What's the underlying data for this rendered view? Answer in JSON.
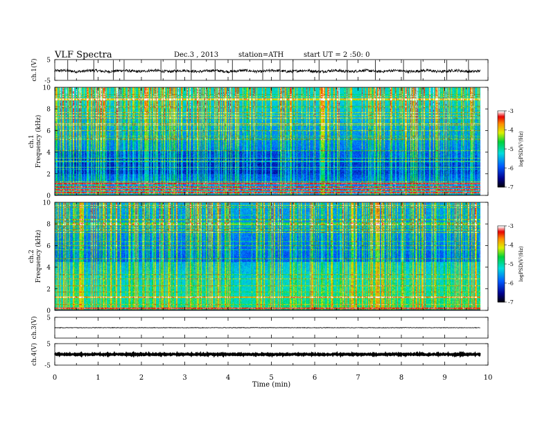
{
  "header": {
    "title": "VLF Spectra",
    "date": "Dec.3 , 2013",
    "station": "station=ATH",
    "start": "start UT = 2 :50: 0"
  },
  "chart_data": [
    {
      "type": "line",
      "name": "ch1-waveform",
      "ylabel": "ch.1(V)",
      "ylim": [
        -5,
        5
      ],
      "yticks": [
        "5",
        "-5"
      ],
      "mean_level": -0.5,
      "spike_times_min": [
        0.3,
        0.9,
        1.35,
        1.6,
        2.45,
        2.8,
        3.15,
        3.7,
        4.1,
        4.8,
        5.2,
        5.5,
        6.1,
        6.75,
        7.4,
        8.05,
        8.45,
        9.05,
        9.55
      ]
    },
    {
      "type": "heatmap",
      "name": "ch1-spectrogram",
      "ylabel": "ch.1 Frequency (kHz)",
      "ylim": [
        0,
        10
      ],
      "yticks": [
        "0",
        "2",
        "4",
        "6",
        "8",
        "10"
      ],
      "colorbar": {
        "label": "logPSD(V²/Hz)",
        "ticks": [
          "-3",
          "-4",
          "-5",
          "-6",
          "-7"
        ],
        "range": [
          -7,
          -3
        ]
      },
      "transition_time_min": 5.2,
      "strong_lines_khz": [
        0.3,
        0.55,
        0.8,
        1.1
      ]
    },
    {
      "type": "heatmap",
      "name": "ch2-spectrogram",
      "ylabel": "ch.2 Frequency (kHz)",
      "ylim": [
        0,
        10
      ],
      "yticks": [
        "0",
        "2",
        "4",
        "6",
        "8",
        "10"
      ],
      "colorbar": {
        "label": "logPSD(V²/Hz)",
        "ticks": [
          "-3",
          "-4",
          "-5",
          "-6",
          "-7"
        ],
        "range": [
          -7,
          -3
        ]
      },
      "transition_time_min": 5.2,
      "strong_lines_khz": [
        0.2
      ]
    },
    {
      "type": "line",
      "name": "ch3-waveform",
      "ylabel": "ch.3(V)",
      "ylim": [
        -5,
        5
      ],
      "yticks": [
        "5"
      ],
      "mean_level": 0
    },
    {
      "type": "line",
      "name": "ch4-waveform",
      "ylabel": "ch.4(V)",
      "ylim": [
        -5,
        5
      ],
      "yticks": [
        "5",
        "-5"
      ],
      "mean_level": 0
    }
  ],
  "xaxis": {
    "label": "Time (min)",
    "range": [
      0,
      10
    ],
    "ticks": [
      "0",
      "1",
      "2",
      "3",
      "4",
      "5",
      "6",
      "7",
      "8",
      "9",
      "10"
    ],
    "data_end": 9.82
  }
}
